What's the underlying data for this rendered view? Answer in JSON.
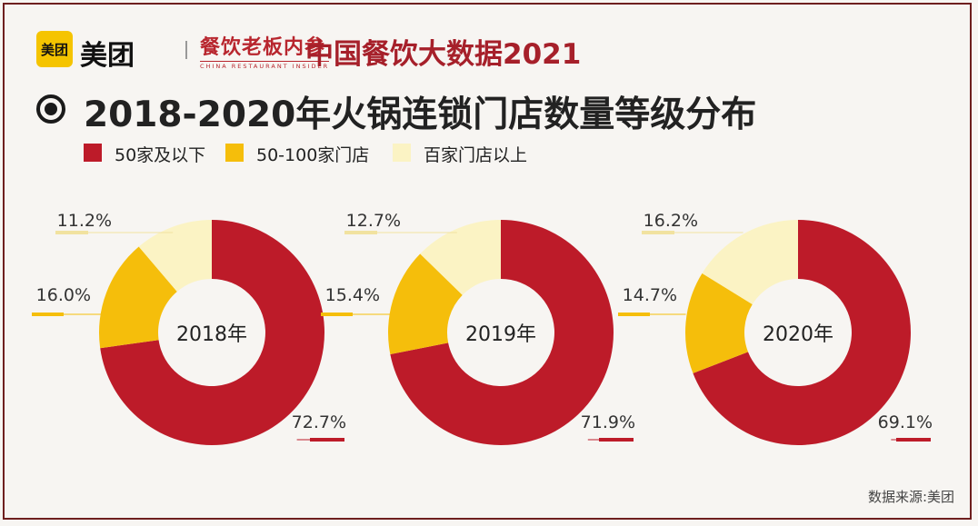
{
  "brand": {
    "logo_text": "美团",
    "name": "美团"
  },
  "partner": {
    "name_cn": "餐饮老板内参",
    "name_en": "CHINA RESTAURANT INSIDER"
  },
  "header": {
    "title": "中国餐饮大数据2021"
  },
  "chart_title": "2018-2020年火锅连锁门店数量等级分布",
  "source": "数据来源:美团",
  "colors": {
    "small": "#bd1b29",
    "medium": "#f5be0b",
    "large": "#fbf3c4"
  },
  "chart_data": {
    "type": "pie",
    "variant": "donut",
    "title": "2018-2020年火锅连锁门店数量等级分布",
    "legend": [
      "50家及以下",
      "50-100家门店",
      "百家门店以上"
    ],
    "legend_position": "top-left",
    "charts": [
      {
        "center_label": "2018年",
        "values": [
          72.7,
          16.0,
          11.2
        ],
        "labels": [
          "72.7%",
          "16.0%",
          "11.2%"
        ]
      },
      {
        "center_label": "2019年",
        "values": [
          71.9,
          15.4,
          12.7
        ],
        "labels": [
          "71.9%",
          "15.4%",
          "12.7%"
        ]
      },
      {
        "center_label": "2020年",
        "values": [
          69.1,
          14.7,
          16.2
        ],
        "labels": [
          "69.1%",
          "14.7%",
          "16.2%"
        ]
      }
    ]
  }
}
